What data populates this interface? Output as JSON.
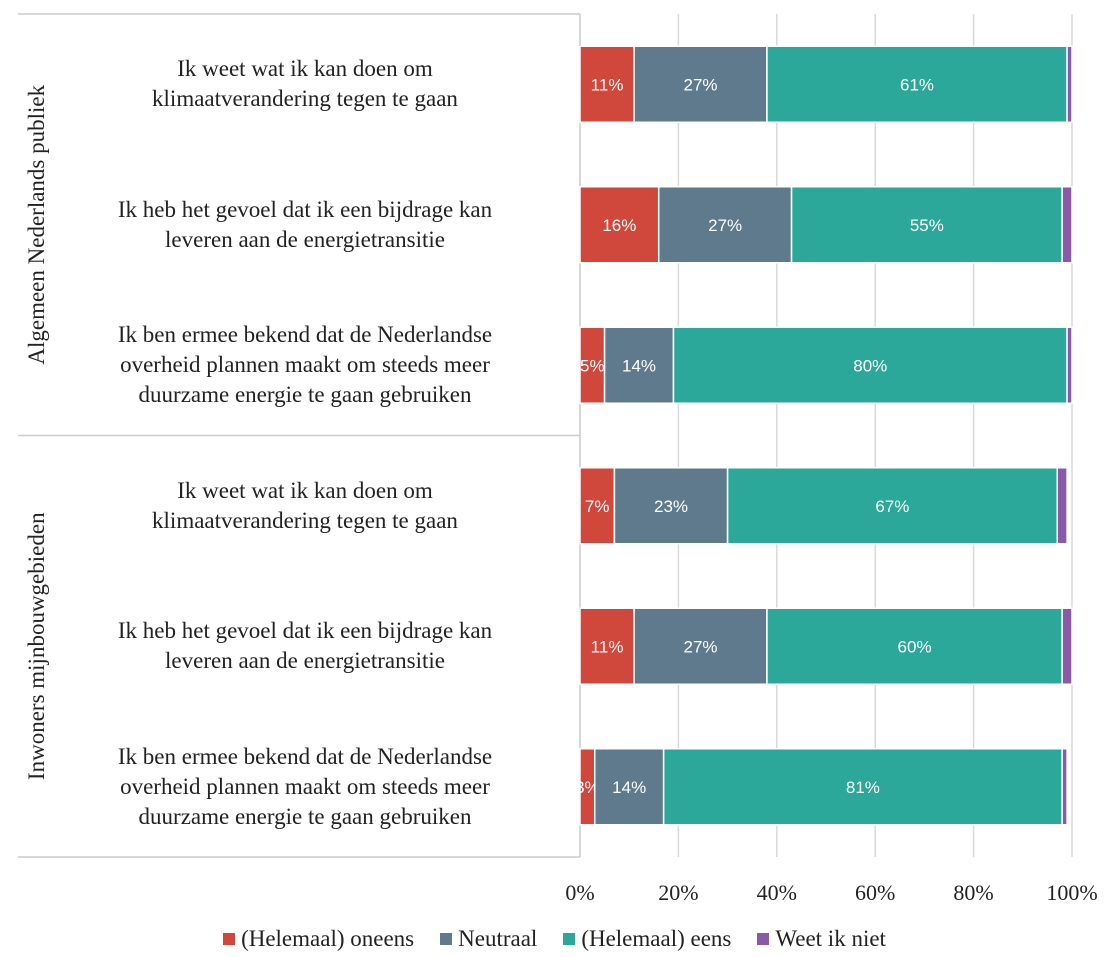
{
  "chart_data": {
    "type": "stacked-barh",
    "groups": [
      "Algemeen Nederlands publiek",
      "Inwoners mijnbouwgebieden"
    ],
    "categories": [
      "Ik weet wat ik kan doen om\nklimaatverandering tegen te gaan",
      "Ik heb het gevoel dat ik een bijdrage kan\nleveren aan de energietransitie",
      "Ik ben ermee bekend dat de Nederlandse\noverheid plannen maakt om steeds meer\nduurzame energie te gaan gebruiken",
      "Ik weet wat ik kan doen om\nklimaatverandering tegen te gaan",
      "Ik heb het gevoel dat ik een bijdrage kan\nleveren aan de energietransitie",
      "Ik ben ermee bekend dat de Nederlandse\noverheid plannen maakt om steeds meer\nduurzame energie te gaan gebruiken"
    ],
    "series": [
      {
        "name": "(Helemaal) oneens",
        "color": "#d0473c",
        "values": [
          11,
          16,
          5,
          7,
          11,
          3
        ],
        "value_labels": [
          "11%",
          "16%",
          "5%",
          "7%",
          "11%",
          "3%"
        ]
      },
      {
        "name": "Neutraal",
        "color": "#5f7a8c",
        "values": [
          27,
          27,
          14,
          23,
          27,
          14
        ],
        "value_labels": [
          "27%",
          "27%",
          "14%",
          "23%",
          "27%",
          "14%"
        ]
      },
      {
        "name": "(Helemaal) eens",
        "color": "#2ba89a",
        "values": [
          61,
          55,
          80,
          67,
          60,
          81
        ],
        "value_labels": [
          "61%",
          "55%",
          "80%",
          "67%",
          "60%",
          "81%"
        ]
      },
      {
        "name": "Weet ik niet",
        "color": "#8a5aa8",
        "values": [
          1,
          2,
          1,
          2,
          2,
          1
        ]
      }
    ],
    "xlim": [
      0,
      100
    ],
    "xticks": [
      {
        "value": 0,
        "label": "0%"
      },
      {
        "value": 20,
        "label": "20%"
      },
      {
        "value": 40,
        "label": "40%"
      },
      {
        "value": 60,
        "label": "60%"
      },
      {
        "value": 80,
        "label": "80%"
      },
      {
        "value": 100,
        "label": "100%"
      }
    ],
    "grid": true
  }
}
